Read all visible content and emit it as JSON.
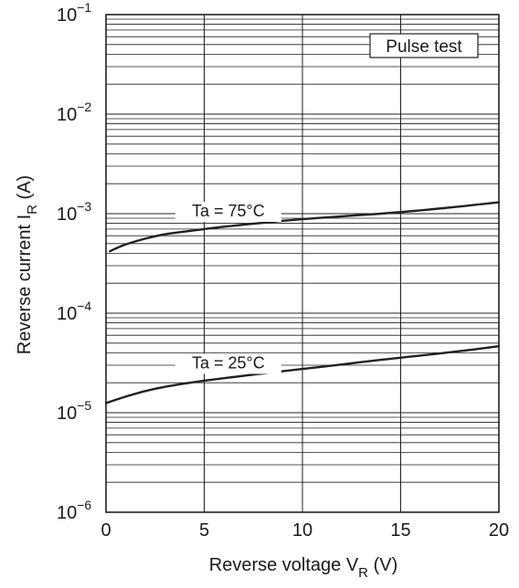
{
  "chart_data": {
    "type": "line",
    "xlabel": "Reverse voltage",
    "xlabel_symbol": "V",
    "xlabel_subscript": "R",
    "xlabel_unit": "(V)",
    "ylabel": "Reverse current",
    "ylabel_symbol": "I",
    "ylabel_subscript": "R",
    "ylabel_unit": "(A)",
    "xlim": [
      0,
      20
    ],
    "ylim": [
      1e-06,
      0.1
    ],
    "yscale": "log",
    "grid": true,
    "x_ticks": [
      0,
      5,
      10,
      15,
      20
    ],
    "x_tick_labels": [
      "0",
      "5",
      "10",
      "15",
      "20"
    ],
    "y_ticks": [
      1e-06,
      1e-05,
      0.0001,
      0.001,
      0.01,
      0.1
    ],
    "y_tick_labels": [
      {
        "base": "10",
        "exp": "−6"
      },
      {
        "base": "10",
        "exp": "−5"
      },
      {
        "base": "10",
        "exp": "−4"
      },
      {
        "base": "10",
        "exp": "−3"
      },
      {
        "base": "10",
        "exp": "−2"
      },
      {
        "base": "10",
        "exp": "−1"
      }
    ],
    "annotation": "Pulse test",
    "series": [
      {
        "name": "Ta = 75°C",
        "x": [
          0.2,
          1,
          2,
          3,
          4,
          5,
          6,
          8,
          10,
          12,
          14,
          16,
          18,
          20
        ],
        "y": [
          0.00042,
          0.00049,
          0.00056,
          0.00062,
          0.00066,
          0.0007,
          0.00074,
          0.00081,
          0.00088,
          0.00094,
          0.001,
          0.00108,
          0.00118,
          0.0013
        ]
      },
      {
        "name": "Ta = 25°C",
        "x": [
          0,
          1,
          2,
          3,
          4,
          5,
          6,
          8,
          10,
          12,
          14,
          16,
          18,
          20
        ],
        "y": [
          1.25e-05,
          1.45e-05,
          1.65e-05,
          1.82e-05,
          1.96e-05,
          2.1e-05,
          2.22e-05,
          2.48e-05,
          2.75e-05,
          3.05e-05,
          3.4e-05,
          3.75e-05,
          4.15e-05,
          4.65e-05
        ]
      }
    ]
  }
}
